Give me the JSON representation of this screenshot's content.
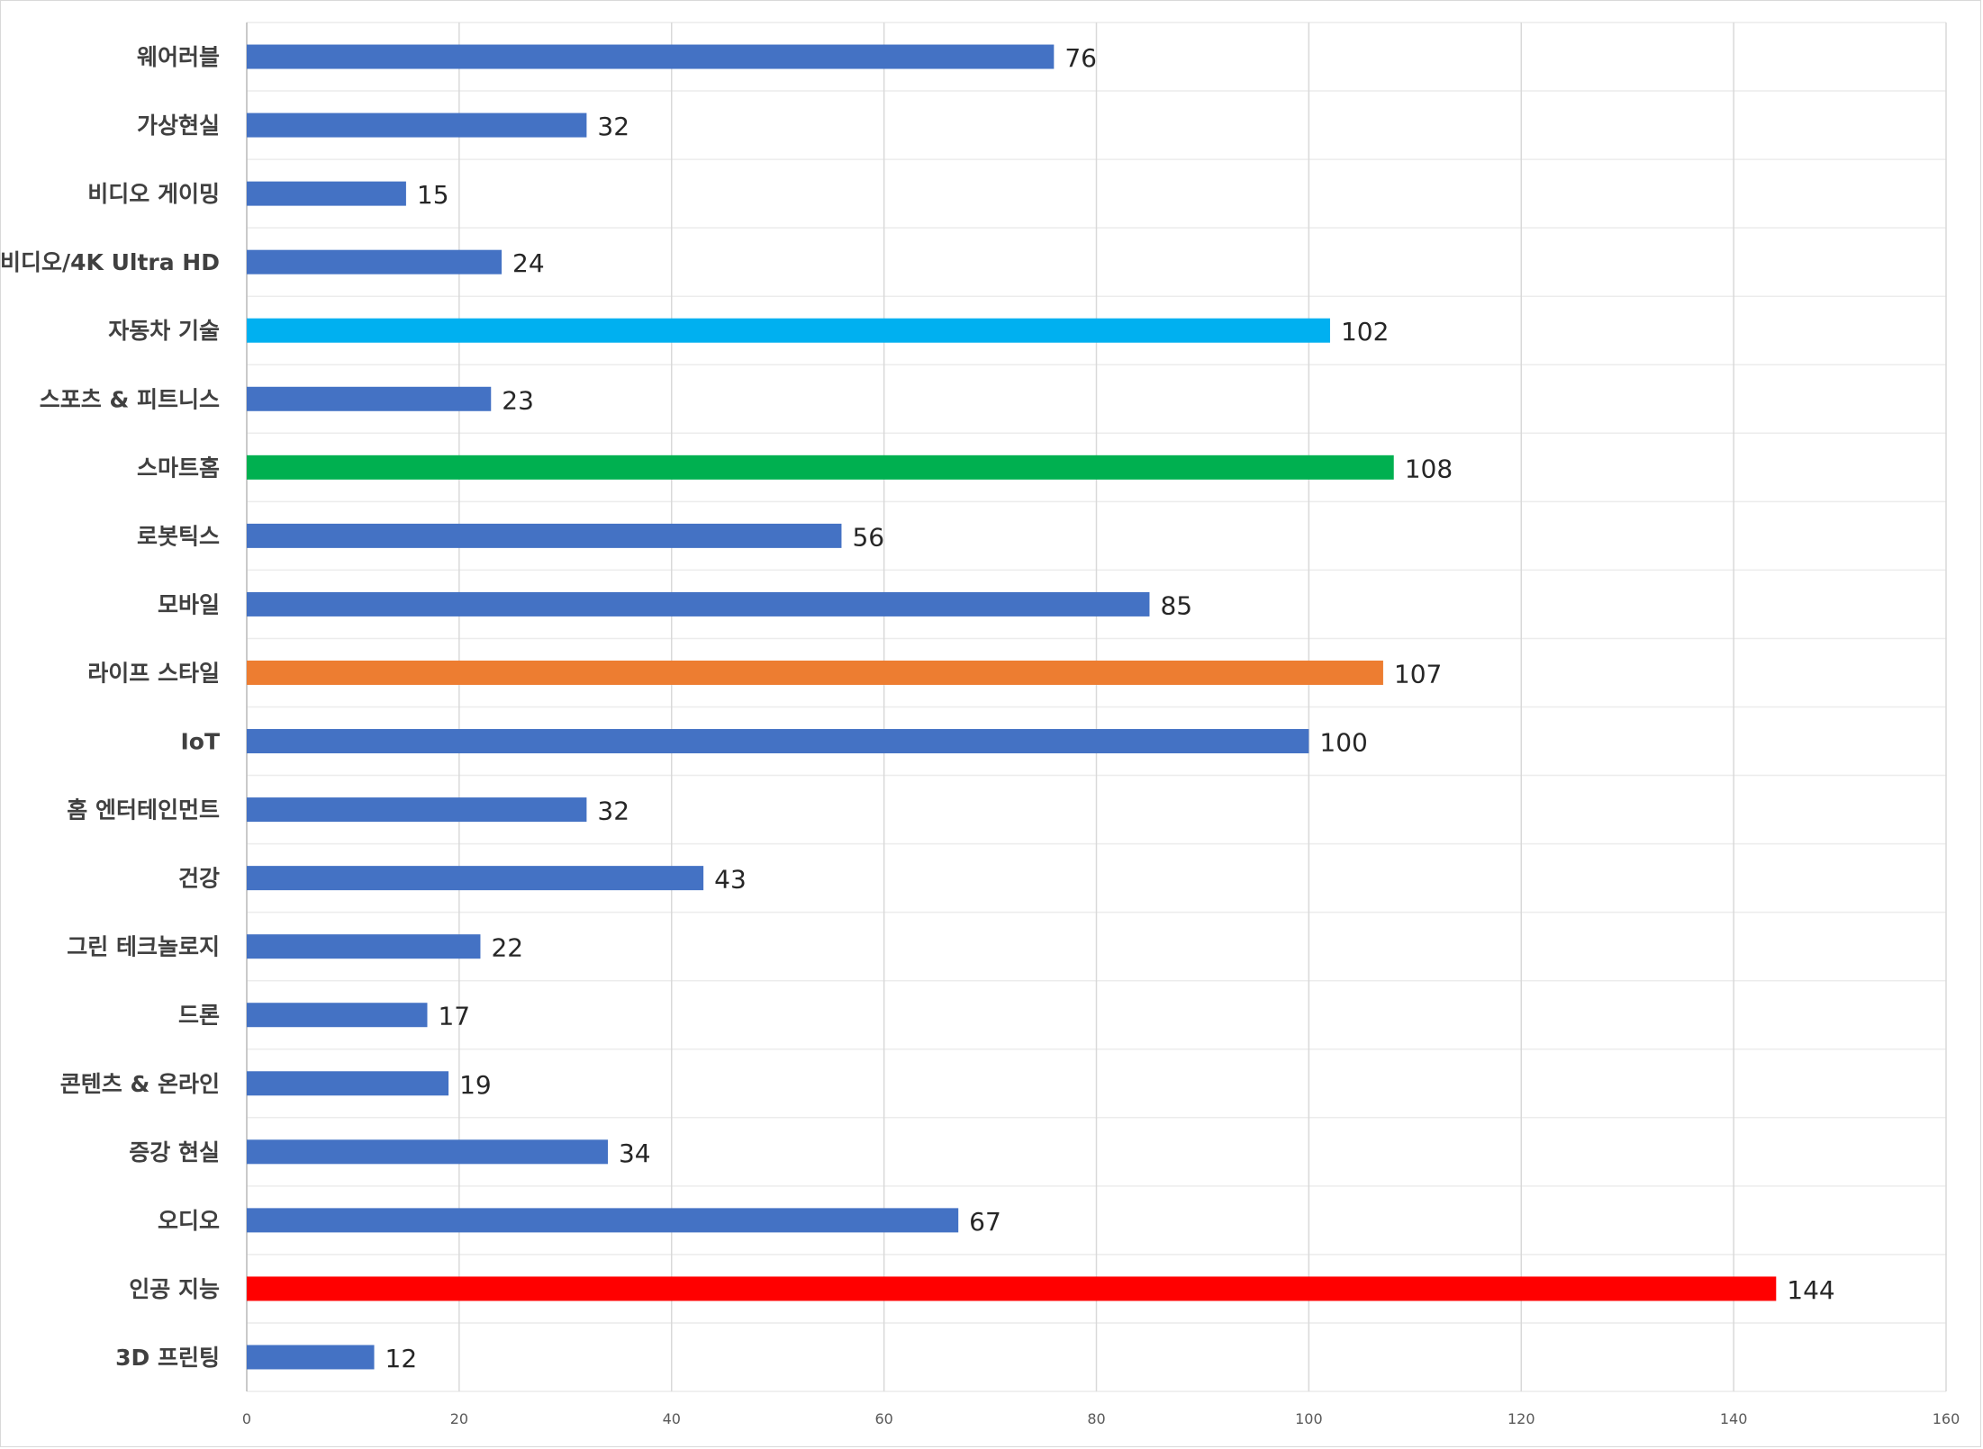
{
  "chart_data": {
    "type": "bar",
    "orientation": "horizontal",
    "title": "",
    "xlabel": "",
    "ylabel": "",
    "xlim": [
      0,
      160
    ],
    "x_ticks": [
      0,
      20,
      40,
      60,
      80,
      100,
      120,
      140,
      160
    ],
    "grid": true,
    "legend": "none",
    "default_color": "#4472c4",
    "categories": [
      "웨어러블",
      "가상현실",
      "비디오 게이밍",
      "비디오/4K Ultra HD",
      "자동차 기술",
      "스포츠 & 피트니스",
      "스마트홈",
      "로봇틱스",
      "모바일",
      "라이프 스타일",
      "IoT",
      "홈 엔터테인먼트",
      "건강",
      "그린 테크놀로지",
      "드론",
      "콘텐츠 & 온라인",
      "증강 현실",
      "오디오",
      "인공 지능",
      "3D 프린팅"
    ],
    "values": [
      76,
      32,
      15,
      24,
      102,
      23,
      108,
      56,
      85,
      107,
      100,
      32,
      43,
      22,
      17,
      19,
      34,
      67,
      144,
      12
    ],
    "colors": [
      "#4472c4",
      "#4472c4",
      "#4472c4",
      "#4472c4",
      "#00b0f0",
      "#4472c4",
      "#00b050",
      "#4472c4",
      "#4472c4",
      "#ed7d31",
      "#4472c4",
      "#4472c4",
      "#4472c4",
      "#4472c4",
      "#4472c4",
      "#4472c4",
      "#4472c4",
      "#4472c4",
      "#ff0000",
      "#4472c4"
    ]
  }
}
